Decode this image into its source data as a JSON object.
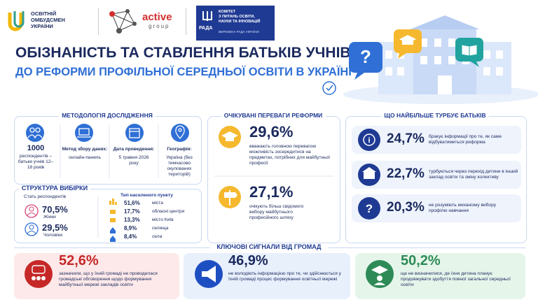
{
  "header": {
    "ombudsman": [
      "ОСВІТНІЙ",
      "ОМБУДСМЕН",
      "УКРАЇНИ"
    ],
    "active_group": [
      "active",
      "group"
    ],
    "rada": {
      "emblem": "РАДА",
      "committee": [
        "КОМІТЕТ",
        "З ПИТАНЬ ОСВІТИ,",
        "НАУКИ ТА ІННОВАЦІЙ"
      ],
      "parliament": "ВЕРХОВНА РАДА УКРАЇНИ"
    }
  },
  "title": [
    "ОБІЗНАНІСТЬ ТА СТАВЛЕННЯ БАТЬКІВ УЧНІВ",
    "ДО РЕФОРМИ ПРОФІЛЬНОЇ СЕРЕДНЬОЇ ОСВІТИ В УКРАЇНІ"
  ],
  "methodology": {
    "heading": "МЕТОДОЛОГІЯ ДОСЛІДЖЕННЯ",
    "items": [
      {
        "value": "1000",
        "text": "респондентів – батьки учнів 12–18 років"
      },
      {
        "label": "Метод збору даних:",
        "text": "онлайн-панель"
      },
      {
        "label": "Дата проведення:",
        "text": "5 травня 2026 року"
      },
      {
        "label": "Географія:",
        "text": "Україна (без тимчасово окупованих територій)"
      }
    ]
  },
  "sample": {
    "heading": "СТРУКТУРА ВИБІРКИ",
    "gender_heading": "Стать респондентів",
    "gender": [
      {
        "value": "70,5%",
        "label": "Жінки"
      },
      {
        "value": "29,5%",
        "label": "Чоловіки"
      }
    ],
    "settlement_heading": "Тип населеного пункту",
    "settlement": [
      {
        "value": "51,6%",
        "label": "міста"
      },
      {
        "value": "17,7%",
        "label": "обласні центри"
      },
      {
        "value": "13,3%",
        "label": "місто Київ"
      },
      {
        "value": "8,9%",
        "label": "селища"
      },
      {
        "value": "8,4%",
        "label": "села"
      }
    ]
  },
  "benefits": {
    "heading": "ОЧІКУВАНІ ПЕРЕВАГИ РЕФОРМИ",
    "items": [
      {
        "value": "29,6%",
        "text": "вважають головною перевагою можливість зосередитися на предметах, потрібних для майбутньої професії"
      },
      {
        "value": "27,1%",
        "text": "очікують більш свідомого вибору майбутнього професійного шляху"
      }
    ]
  },
  "concerns": {
    "heading": "ЩО НАЙБІЛЬШЕ ТУРБУЄ БАТЬКІВ",
    "items": [
      {
        "value": "24,7%",
        "text": "бракує інформації про те, як саме відбуватиметься реформа"
      },
      {
        "value": "22,7%",
        "text": "турбуються через перехід дитини в інший заклад освіти та зміну колективу"
      },
      {
        "value": "20,3%",
        "text": "не розуміють механізму вибору профілю навчання"
      }
    ]
  },
  "signals": {
    "heading": "КЛЮЧОВІ СИГНАЛИ ВІД ГРОМАД",
    "items": [
      {
        "value": "52,6%",
        "text": "зазначили, що у їхній громаді не проводилася громадські обговорення щодо формування майбутньої мережі закладів освіти"
      },
      {
        "value": "46,9%",
        "text": "не володіють інформацією про те, чи здійснюється у їхній громаді процес формування освітньої мережі"
      },
      {
        "value": "50,2%",
        "text": "ще не визначилися, де їхня дитина планує продовжувати здобуття повної загальної середньої освіти"
      }
    ]
  }
}
